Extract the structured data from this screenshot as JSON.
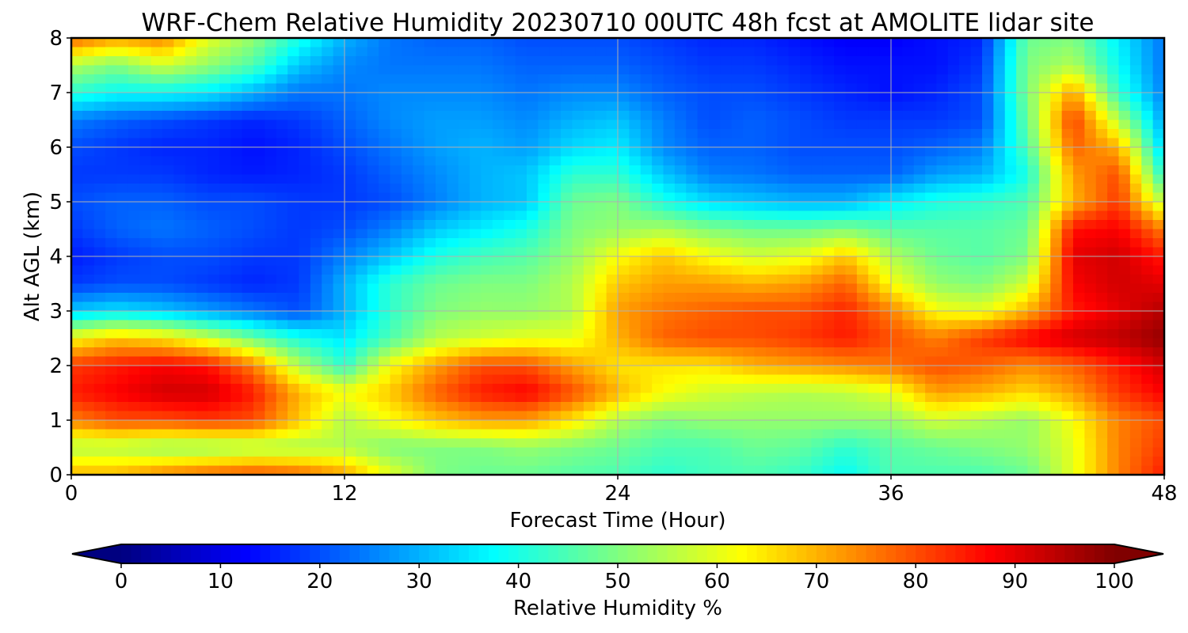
{
  "chart_data": {
    "type": "heatmap",
    "title": "WRF-Chem Relative Humidity 20230710 00UTC 48h fcst at AMOLITE lidar site",
    "xlabel": "Forecast Time (Hour)",
    "ylabel": "Alt AGL (km)",
    "xlim": [
      0,
      48
    ],
    "ylim": [
      0,
      8
    ],
    "xticks": [
      0,
      12,
      24,
      36,
      48
    ],
    "yticks": [
      0,
      1,
      2,
      3,
      4,
      5,
      6,
      7,
      8
    ],
    "grid": true,
    "colorbar": {
      "label": "Relative Humidity %",
      "min": 0,
      "max": 100,
      "ticks": [
        0,
        10,
        20,
        30,
        40,
        50,
        60,
        70,
        80,
        90,
        100
      ],
      "colormap": "jet",
      "extend": "both",
      "placement": "bottom"
    },
    "x": [
      0,
      2,
      4,
      6,
      8,
      10,
      12,
      14,
      16,
      18,
      20,
      22,
      24,
      26,
      28,
      30,
      32,
      34,
      36,
      38,
      40,
      42,
      44,
      46,
      48
    ],
    "y": [
      0,
      0.5,
      1,
      1.5,
      2,
      2.5,
      3,
      3.5,
      4,
      4.5,
      5,
      5.5,
      6,
      6.5,
      7,
      7.5,
      8
    ],
    "z": [
      [
        70,
        70,
        75,
        78,
        80,
        78,
        72,
        60,
        50,
        48,
        48,
        46,
        45,
        42,
        44,
        45,
        43,
        38,
        45,
        45,
        45,
        48,
        60,
        75,
        85
      ],
      [
        55,
        55,
        52,
        52,
        54,
        54,
        55,
        50,
        50,
        50,
        52,
        50,
        48,
        45,
        45,
        48,
        47,
        42,
        46,
        48,
        50,
        52,
        60,
        75,
        82
      ],
      [
        75,
        80,
        80,
        82,
        80,
        68,
        55,
        62,
        68,
        72,
        72,
        65,
        55,
        50,
        52,
        52,
        52,
        52,
        52,
        58,
        55,
        52,
        62,
        75,
        80
      ],
      [
        85,
        88,
        92,
        92,
        85,
        70,
        62,
        68,
        78,
        85,
        88,
        80,
        70,
        62,
        58,
        56,
        55,
        56,
        60,
        72,
        70,
        66,
        72,
        82,
        88
      ],
      [
        82,
        85,
        88,
        86,
        75,
        55,
        42,
        62,
        72,
        80,
        80,
        72,
        65,
        65,
        65,
        70,
        72,
        74,
        76,
        80,
        78,
        74,
        78,
        85,
        92
      ],
      [
        62,
        68,
        65,
        58,
        48,
        40,
        35,
        45,
        55,
        58,
        60,
        60,
        70,
        78,
        80,
        80,
        82,
        85,
        80,
        75,
        82,
        88,
        92,
        94,
        98
      ],
      [
        32,
        35,
        32,
        28,
        24,
        20,
        30,
        42,
        50,
        52,
        52,
        55,
        72,
        76,
        78,
        80,
        80,
        84,
        75,
        62,
        60,
        70,
        85,
        90,
        95
      ],
      [
        18,
        20,
        20,
        18,
        16,
        18,
        30,
        42,
        48,
        50,
        50,
        55,
        68,
        72,
        72,
        70,
        72,
        78,
        62,
        52,
        50,
        58,
        88,
        92,
        90
      ],
      [
        15,
        18,
        20,
        20,
        18,
        18,
        25,
        32,
        40,
        44,
        46,
        52,
        62,
        68,
        62,
        58,
        60,
        68,
        55,
        48,
        46,
        50,
        90,
        92,
        85
      ],
      [
        18,
        22,
        24,
        22,
        20,
        18,
        20,
        25,
        32,
        36,
        40,
        50,
        52,
        54,
        50,
        48,
        48,
        50,
        46,
        46,
        46,
        48,
        86,
        88,
        75
      ],
      [
        20,
        22,
        22,
        20,
        20,
        18,
        18,
        20,
        25,
        30,
        32,
        48,
        50,
        40,
        34,
        32,
        30,
        30,
        36,
        40,
        42,
        45,
        70,
        82,
        55
      ],
      [
        18,
        18,
        18,
        16,
        15,
        16,
        18,
        22,
        26,
        30,
        32,
        42,
        42,
        32,
        25,
        24,
        22,
        22,
        22,
        28,
        30,
        40,
        72,
        80,
        40
      ],
      [
        20,
        18,
        16,
        16,
        14,
        16,
        20,
        24,
        28,
        30,
        28,
        34,
        36,
        26,
        22,
        22,
        20,
        20,
        20,
        22,
        25,
        45,
        78,
        70,
        32
      ],
      [
        25,
        22,
        20,
        18,
        16,
        18,
        22,
        26,
        28,
        28,
        26,
        30,
        32,
        25,
        20,
        22,
        20,
        18,
        18,
        18,
        20,
        48,
        82,
        55,
        28
      ],
      [
        42,
        38,
        38,
        36,
        30,
        24,
        24,
        26,
        26,
        26,
        24,
        26,
        26,
        22,
        20,
        20,
        18,
        16,
        14,
        16,
        20,
        50,
        72,
        42,
        25
      ],
      [
        55,
        50,
        58,
        52,
        45,
        32,
        26,
        24,
        24,
        24,
        22,
        22,
        22,
        20,
        18,
        18,
        16,
        14,
        14,
        14,
        18,
        50,
        55,
        38,
        24
      ],
      [
        78,
        72,
        75,
        60,
        52,
        40,
        30,
        24,
        22,
        22,
        20,
        20,
        20,
        18,
        16,
        16,
        14,
        12,
        12,
        14,
        16,
        48,
        50,
        36,
        24
      ]
    ]
  }
}
